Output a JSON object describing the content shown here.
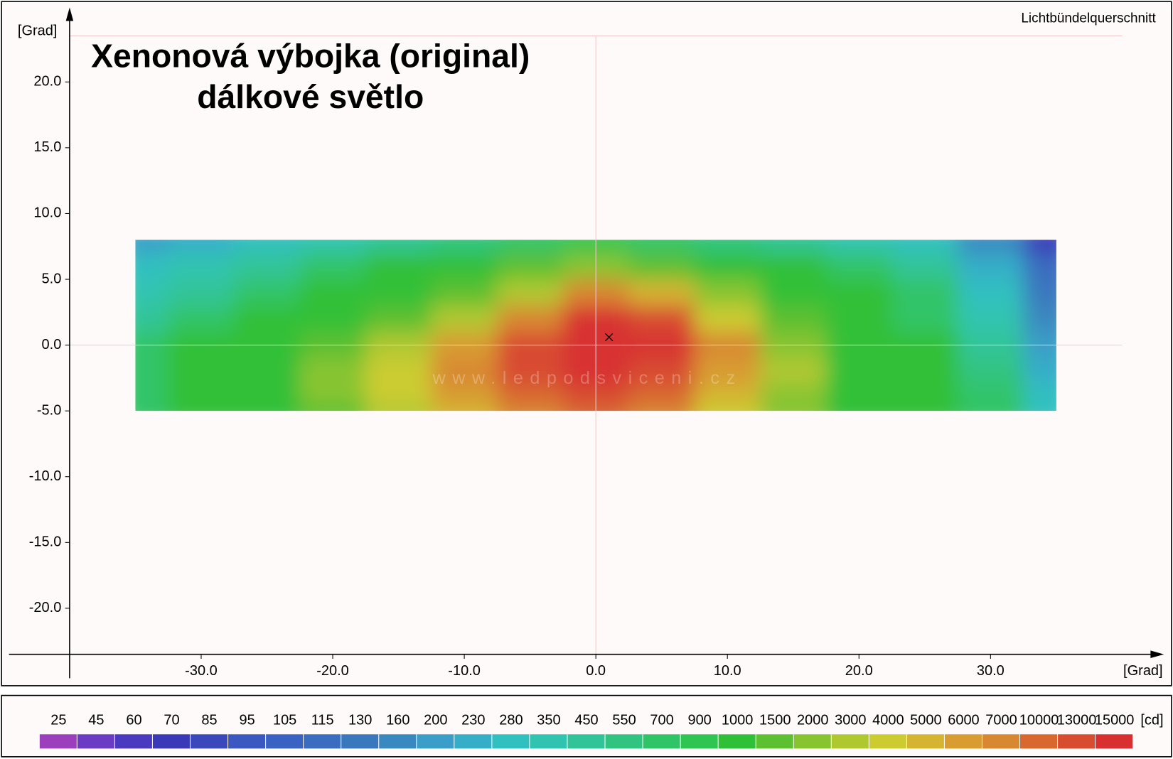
{
  "chart_data": {
    "type": "heatmap",
    "title": "Xenonová výbojka (original)",
    "subtitle": "dálkové světlo",
    "corner_label": "Lichtbündelquerschnitt",
    "watermark": "www.ledpodsviceni.cz",
    "x_label": "[Grad]",
    "y_label": "[Grad]",
    "xlim": [
      -40,
      40
    ],
    "ylim": [
      -23.5,
      23.5
    ],
    "xticks": [
      {
        "value": -30,
        "label": "-30.0"
      },
      {
        "value": -20,
        "label": "-20.0"
      },
      {
        "value": -10,
        "label": "-10.0"
      },
      {
        "value": 0,
        "label": "0.0"
      },
      {
        "value": 10,
        "label": "10.0"
      },
      {
        "value": 20,
        "label": "20.0"
      },
      {
        "value": 30,
        "label": "30.0"
      }
    ],
    "yticks": [
      {
        "value": 20,
        "label": "20.0"
      },
      {
        "value": 15,
        "label": "15.0"
      },
      {
        "value": 10,
        "label": "10.0"
      },
      {
        "value": 5,
        "label": "5.0"
      },
      {
        "value": 0,
        "label": "0.0"
      },
      {
        "value": -5,
        "label": "-5.0"
      },
      {
        "value": -10,
        "label": "-10.0"
      },
      {
        "value": -15,
        "label": "-15.0"
      },
      {
        "value": -20,
        "label": "-20.0"
      }
    ],
    "x": [
      -35,
      -30,
      -25,
      -20,
      -15,
      -10,
      -5,
      0,
      5,
      10,
      15,
      20,
      25,
      30,
      35
    ],
    "y": [
      8,
      6,
      4,
      2,
      0,
      -2,
      -4,
      -5
    ],
    "z": [
      [
        200,
        230,
        280,
        350,
        450,
        550,
        700,
        900,
        700,
        550,
        450,
        350,
        280,
        160,
        70
      ],
      [
        280,
        350,
        450,
        700,
        1000,
        1000,
        1500,
        2000,
        1500,
        1000,
        1000,
        700,
        450,
        230,
        115
      ],
      [
        350,
        450,
        700,
        1000,
        1000,
        1500,
        3000,
        7000,
        5000,
        2000,
        1000,
        1000,
        700,
        280,
        130
      ],
      [
        450,
        700,
        1000,
        1000,
        1500,
        3000,
        7000,
        15000,
        13000,
        4000,
        1500,
        1000,
        700,
        350,
        160
      ],
      [
        700,
        1000,
        1000,
        1500,
        3000,
        6000,
        13000,
        15000,
        15000,
        7000,
        2000,
        1000,
        1000,
        450,
        200
      ],
      [
        700,
        1000,
        1000,
        2000,
        4000,
        7000,
        13000,
        15000,
        13000,
        6000,
        3000,
        1000,
        1000,
        550,
        230
      ],
      [
        700,
        1000,
        1000,
        2000,
        4000,
        6000,
        10000,
        13000,
        10000,
        5000,
        2000,
        1000,
        1000,
        700,
        280
      ],
      [
        700,
        1000,
        1000,
        1500,
        3000,
        5000,
        7000,
        10000,
        7000,
        4000,
        2000,
        1000,
        1000,
        700,
        280
      ]
    ],
    "marker": {
      "x": 1,
      "y": 0.6
    },
    "legend": {
      "unit": "[cd]",
      "levels": [
        25,
        45,
        60,
        70,
        85,
        95,
        105,
        115,
        130,
        160,
        200,
        230,
        280,
        350,
        450,
        550,
        700,
        900,
        1000,
        1500,
        2000,
        3000,
        4000,
        5000,
        6000,
        7000,
        10000,
        13000,
        15000
      ],
      "colors": [
        "#9b3fbd",
        "#6a3cc4",
        "#4a3ac0",
        "#3a3ab8",
        "#3a48bc",
        "#3a58c0",
        "#3a62c2",
        "#3a6cc0",
        "#3a78be",
        "#3a88c0",
        "#3a9ec8",
        "#36aec8",
        "#30c0c0",
        "#30c4b0",
        "#30c498",
        "#30c480",
        "#30c468",
        "#30c450",
        "#30c038",
        "#5cc030",
        "#88c430",
        "#b0c830",
        "#cccc30",
        "#d4b430",
        "#d89c30",
        "#d88830",
        "#d86830",
        "#d84c30",
        "#d83030"
      ]
    }
  }
}
